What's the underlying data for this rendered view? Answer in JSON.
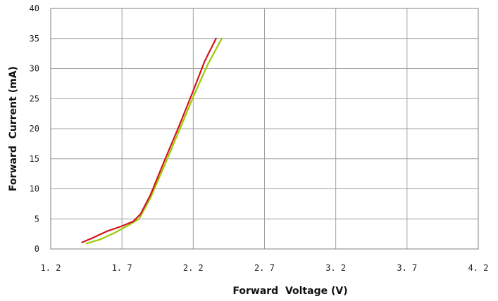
{
  "chart_data": {
    "type": "line",
    "title": "",
    "xlabel": "Forward  Voltage (V)",
    "ylabel": "Forward  Current (mA)",
    "xlim": [
      1.2,
      4.2
    ],
    "ylim": [
      0,
      40
    ],
    "x_ticks": [
      "1. 2",
      "1. 7",
      "2. 2",
      "2. 7",
      "3. 2",
      "3. 7",
      "4. 2"
    ],
    "x_tick_values": [
      1.2,
      1.7,
      2.2,
      2.7,
      3.2,
      3.7,
      4.2
    ],
    "y_ticks": [
      "0",
      "5",
      "10",
      "15",
      "20",
      "25",
      "30",
      "35",
      "40"
    ],
    "y_tick_values": [
      0,
      5,
      10,
      15,
      20,
      25,
      30,
      35,
      40
    ],
    "grid": true,
    "legend": "none",
    "series": [
      {
        "color": "#99cc00",
        "points": [
          [
            1.45,
            0.9
          ],
          [
            1.55,
            1.6
          ],
          [
            1.65,
            2.7
          ],
          [
            1.75,
            4.0
          ],
          [
            1.82,
            5.0
          ],
          [
            1.9,
            8.5
          ],
          [
            2.0,
            14.0
          ],
          [
            2.1,
            19.6
          ],
          [
            2.2,
            25.3
          ],
          [
            2.3,
            30.6
          ],
          [
            2.4,
            35.0
          ]
        ]
      },
      {
        "color": "#d4141c",
        "points": [
          [
            1.42,
            1.1
          ],
          [
            1.5,
            1.9
          ],
          [
            1.6,
            3.0
          ],
          [
            1.7,
            3.8
          ],
          [
            1.78,
            4.6
          ],
          [
            1.83,
            5.8
          ],
          [
            1.9,
            9.0
          ],
          [
            2.0,
            14.8
          ],
          [
            2.1,
            20.4
          ],
          [
            2.2,
            26.3
          ],
          [
            2.28,
            31.2
          ],
          [
            2.36,
            35.0
          ]
        ]
      }
    ]
  }
}
